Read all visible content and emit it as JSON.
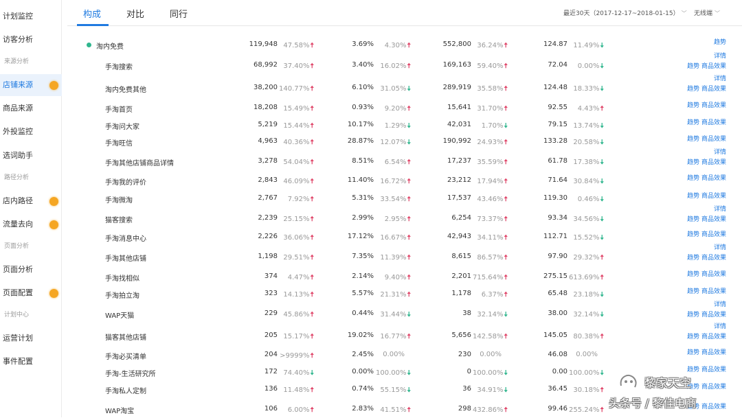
{
  "sidebar": {
    "items": [
      {
        "label": "计划监控",
        "type": "item"
      },
      {
        "label": "访客分析",
        "type": "item"
      },
      {
        "label": "来源分析",
        "type": "section"
      },
      {
        "label": "店铺来源",
        "type": "item",
        "active": true,
        "dot": true
      },
      {
        "label": "商品来源",
        "type": "item"
      },
      {
        "label": "外投监控",
        "type": "item"
      },
      {
        "label": "选词助手",
        "type": "item"
      },
      {
        "label": "路径分析",
        "type": "section"
      },
      {
        "label": "店内路径",
        "type": "item",
        "dot": true
      },
      {
        "label": "流量去向",
        "type": "item",
        "dot": true
      },
      {
        "label": "页面分析",
        "type": "section"
      },
      {
        "label": "页面分析",
        "type": "item"
      },
      {
        "label": "页面配置",
        "type": "item",
        "dot": true
      },
      {
        "label": "计划中心",
        "type": "section"
      },
      {
        "label": "运营计划",
        "type": "item"
      },
      {
        "label": "事件配置",
        "type": "item"
      }
    ]
  },
  "tabs": [
    "构成",
    "对比",
    "同行"
  ],
  "filters": {
    "date_range": "最近30天（2017-12-17~2018-01-15）",
    "device": "无线端"
  },
  "colors": {
    "accent": "#1f7ae0",
    "up": "#e0486b",
    "down": "#2fb68e",
    "dot": "#f5a623"
  },
  "rows": [
    {
      "name": "淘内免费",
      "v1": "119,948",
      "p1": "47.58%",
      "a1": "up",
      "v2": "3.69%",
      "p2": "4.30%",
      "a2": "up",
      "v3": "552,800",
      "p3": "36.24%",
      "a3": "up",
      "v4": "124.87",
      "p4": "11.49%",
      "a4": "down",
      "links": [
        "趋势"
      ],
      "top": true
    },
    {
      "name": "手淘搜索",
      "v1": "68,992",
      "p1": "37.40%",
      "a1": "up",
      "v2": "3.40%",
      "p2": "16.02%",
      "a2": "up",
      "v3": "169,163",
      "p3": "59.40%",
      "a3": "up",
      "v4": "72.04",
      "p4": "0.00%",
      "a4": "down",
      "links": [
        "详情",
        "趋势 商品效果"
      ]
    },
    {
      "name": "淘内免费其他",
      "v1": "38,200",
      "p1": "140.77%",
      "a1": "up",
      "v2": "6.10%",
      "p2": "31.05%",
      "a2": "down",
      "v3": "289,919",
      "p3": "35.58%",
      "a3": "up",
      "v4": "124.48",
      "p4": "18.33%",
      "a4": "down",
      "links": [
        "详情",
        "趋势 商品效果"
      ]
    },
    {
      "name": "手淘首页",
      "v1": "18,208",
      "p1": "15.49%",
      "a1": "up",
      "v2": "0.93%",
      "p2": "9.20%",
      "a2": "up",
      "v3": "15,641",
      "p3": "31.70%",
      "a3": "up",
      "v4": "92.55",
      "p4": "4.43%",
      "a4": "up",
      "links": [
        "趋势 商品效果"
      ]
    },
    {
      "name": "手淘问大家",
      "v1": "5,219",
      "p1": "15.44%",
      "a1": "up",
      "v2": "10.17%",
      "p2": "1.29%",
      "a2": "down",
      "v3": "42,031",
      "p3": "1.70%",
      "a3": "down",
      "v4": "79.15",
      "p4": "13.74%",
      "a4": "down",
      "links": [
        "趋势 商品效果"
      ]
    },
    {
      "name": "手淘旺信",
      "v1": "4,963",
      "p1": "40.36%",
      "a1": "up",
      "v2": "28.87%",
      "p2": "12.07%",
      "a2": "down",
      "v3": "190,992",
      "p3": "24.93%",
      "a3": "up",
      "v4": "133.28",
      "p4": "20.58%",
      "a4": "down",
      "links": [
        "趋势 商品效果"
      ]
    },
    {
      "name": "手淘其他店铺商品详情",
      "v1": "3,278",
      "p1": "54.04%",
      "a1": "up",
      "v2": "8.51%",
      "p2": "6.54%",
      "a2": "up",
      "v3": "17,237",
      "p3": "35.59%",
      "a3": "up",
      "v4": "61.78",
      "p4": "17.38%",
      "a4": "down",
      "links": [
        "详情",
        "趋势 商品效果"
      ]
    },
    {
      "name": "手淘我的评价",
      "v1": "2,843",
      "p1": "46.09%",
      "a1": "up",
      "v2": "11.40%",
      "p2": "16.72%",
      "a2": "up",
      "v3": "23,212",
      "p3": "17.94%",
      "a3": "up",
      "v4": "71.64",
      "p4": "30.84%",
      "a4": "down",
      "links": [
        "趋势 商品效果"
      ]
    },
    {
      "name": "手淘微淘",
      "v1": "2,767",
      "p1": "7.92%",
      "a1": "up",
      "v2": "5.31%",
      "p2": "33.54%",
      "a2": "up",
      "v3": "17,537",
      "p3": "43.46%",
      "a3": "up",
      "v4": "119.30",
      "p4": "0.46%",
      "a4": "down",
      "links": [
        "趋势 商品效果"
      ]
    },
    {
      "name": "猫客搜索",
      "v1": "2,239",
      "p1": "25.15%",
      "a1": "up",
      "v2": "2.99%",
      "p2": "2.95%",
      "a2": "up",
      "v3": "6,254",
      "p3": "73.37%",
      "a3": "up",
      "v4": "93.34",
      "p4": "34.56%",
      "a4": "down",
      "links": [
        "详情",
        "趋势 商品效果"
      ]
    },
    {
      "name": "手淘消息中心",
      "v1": "2,226",
      "p1": "36.06%",
      "a1": "up",
      "v2": "17.12%",
      "p2": "16.67%",
      "a2": "up",
      "v3": "42,943",
      "p3": "34.11%",
      "a3": "up",
      "v4": "112.71",
      "p4": "15.52%",
      "a4": "down",
      "links": [
        "趋势 商品效果"
      ]
    },
    {
      "name": "手淘其他店铺",
      "v1": "1,198",
      "p1": "29.51%",
      "a1": "up",
      "v2": "7.35%",
      "p2": "11.39%",
      "a2": "up",
      "v3": "8,615",
      "p3": "86.57%",
      "a3": "up",
      "v4": "97.90",
      "p4": "29.32%",
      "a4": "up",
      "links": [
        "详情",
        "趋势 商品效果"
      ]
    },
    {
      "name": "手淘找相似",
      "v1": "374",
      "p1": "4.47%",
      "a1": "up",
      "v2": "2.14%",
      "p2": "9.40%",
      "a2": "up",
      "v3": "2,201",
      "p3": "715.64%",
      "a3": "up",
      "v4": "275.15",
      "p4": "613.69%",
      "a4": "up",
      "links": [
        "趋势 商品效果"
      ]
    },
    {
      "name": "手淘拍立淘",
      "v1": "323",
      "p1": "14.13%",
      "a1": "up",
      "v2": "5.57%",
      "p2": "21.31%",
      "a2": "up",
      "v3": "1,178",
      "p3": "6.37%",
      "a3": "up",
      "v4": "65.48",
      "p4": "23.18%",
      "a4": "down",
      "links": [
        "趋势 商品效果"
      ]
    },
    {
      "name": "WAP天猫",
      "v1": "229",
      "p1": "45.86%",
      "a1": "up",
      "v2": "0.44%",
      "p2": "31.44%",
      "a2": "down",
      "v3": "38",
      "p3": "32.14%",
      "a3": "down",
      "v4": "38.00",
      "p4": "32.14%",
      "a4": "down",
      "links": [
        "详情",
        "趋势 商品效果"
      ]
    },
    {
      "name": "猫客其他店铺",
      "v1": "205",
      "p1": "15.17%",
      "a1": "up",
      "v2": "19.02%",
      "p2": "16.77%",
      "a2": "up",
      "v3": "5,656",
      "p3": "142.58%",
      "a3": "up",
      "v4": "145.05",
      "p4": "80.38%",
      "a4": "up",
      "links": [
        "详情",
        "趋势 商品效果"
      ]
    },
    {
      "name": "手淘必买清单",
      "v1": "204",
      "p1": ">9999%",
      "a1": "up",
      "v2": "2.45%",
      "p2": "0.00%",
      "a2": "none",
      "v3": "230",
      "p3": "0.00%",
      "a3": "none",
      "v4": "46.08",
      "p4": "0.00%",
      "a4": "none",
      "links": [
        "趋势 商品效果"
      ]
    },
    {
      "name": "手淘-生活研究所",
      "v1": "172",
      "p1": "74.40%",
      "a1": "down",
      "v2": "0.00%",
      "p2": "100.00%",
      "a2": "down",
      "v3": "0",
      "p3": "100.00%",
      "a3": "down",
      "v4": "0.00",
      "p4": "100.00%",
      "a4": "down",
      "links": [
        "趋势 商品效果"
      ]
    },
    {
      "name": "手淘私人定制",
      "v1": "136",
      "p1": "11.48%",
      "a1": "up",
      "v2": "0.74%",
      "p2": "55.15%",
      "a2": "down",
      "v3": "36",
      "p3": "34.91%",
      "a3": "down",
      "v4": "36.45",
      "p4": "30.18%",
      "a4": "up",
      "links": [
        "趋势 商品效果"
      ]
    },
    {
      "name": "WAP淘宝",
      "v1": "106",
      "p1": "6.00%",
      "a1": "up",
      "v2": "2.83%",
      "p2": "41.51%",
      "a2": "up",
      "v3": "298",
      "p3": "432.86%",
      "a3": "up",
      "v4": "99.46",
      "p4": "255.24%",
      "a4": "up",
      "links": [
        "趋势 商品效果"
      ]
    }
  ],
  "watermark": {
    "line1": "黎家天空",
    "line2": "头条号 / 黎佳电商"
  }
}
